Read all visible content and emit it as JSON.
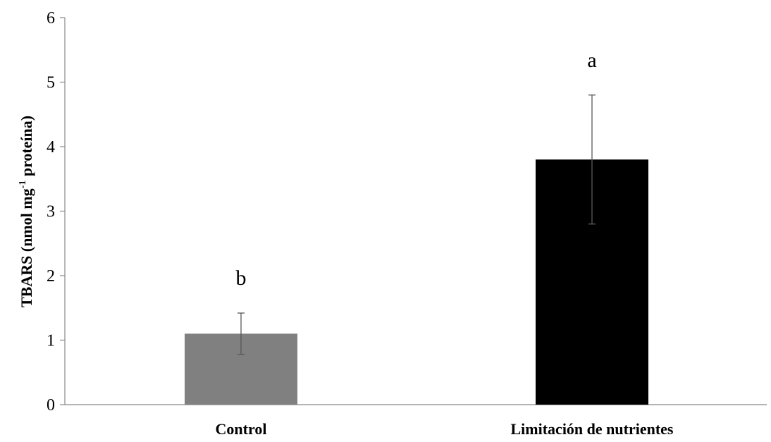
{
  "chart_data": {
    "type": "bar",
    "categories": [
      "Control",
      "Limitación de nutrientes"
    ],
    "values": [
      1.1,
      3.8
    ],
    "error": [
      0.32,
      1.0
    ],
    "significance_labels": [
      "b",
      "a"
    ],
    "colors": [
      "#808080",
      "#000000"
    ],
    "ylabel": {
      "pre": "TBARS (nmol mg",
      "sup": "-1",
      "post": " proteína)"
    },
    "yticks": [
      "0",
      "1",
      "2",
      "3",
      "4",
      "5",
      "6"
    ],
    "ylim": [
      0,
      6
    ],
    "grid": false,
    "legend": "none"
  }
}
